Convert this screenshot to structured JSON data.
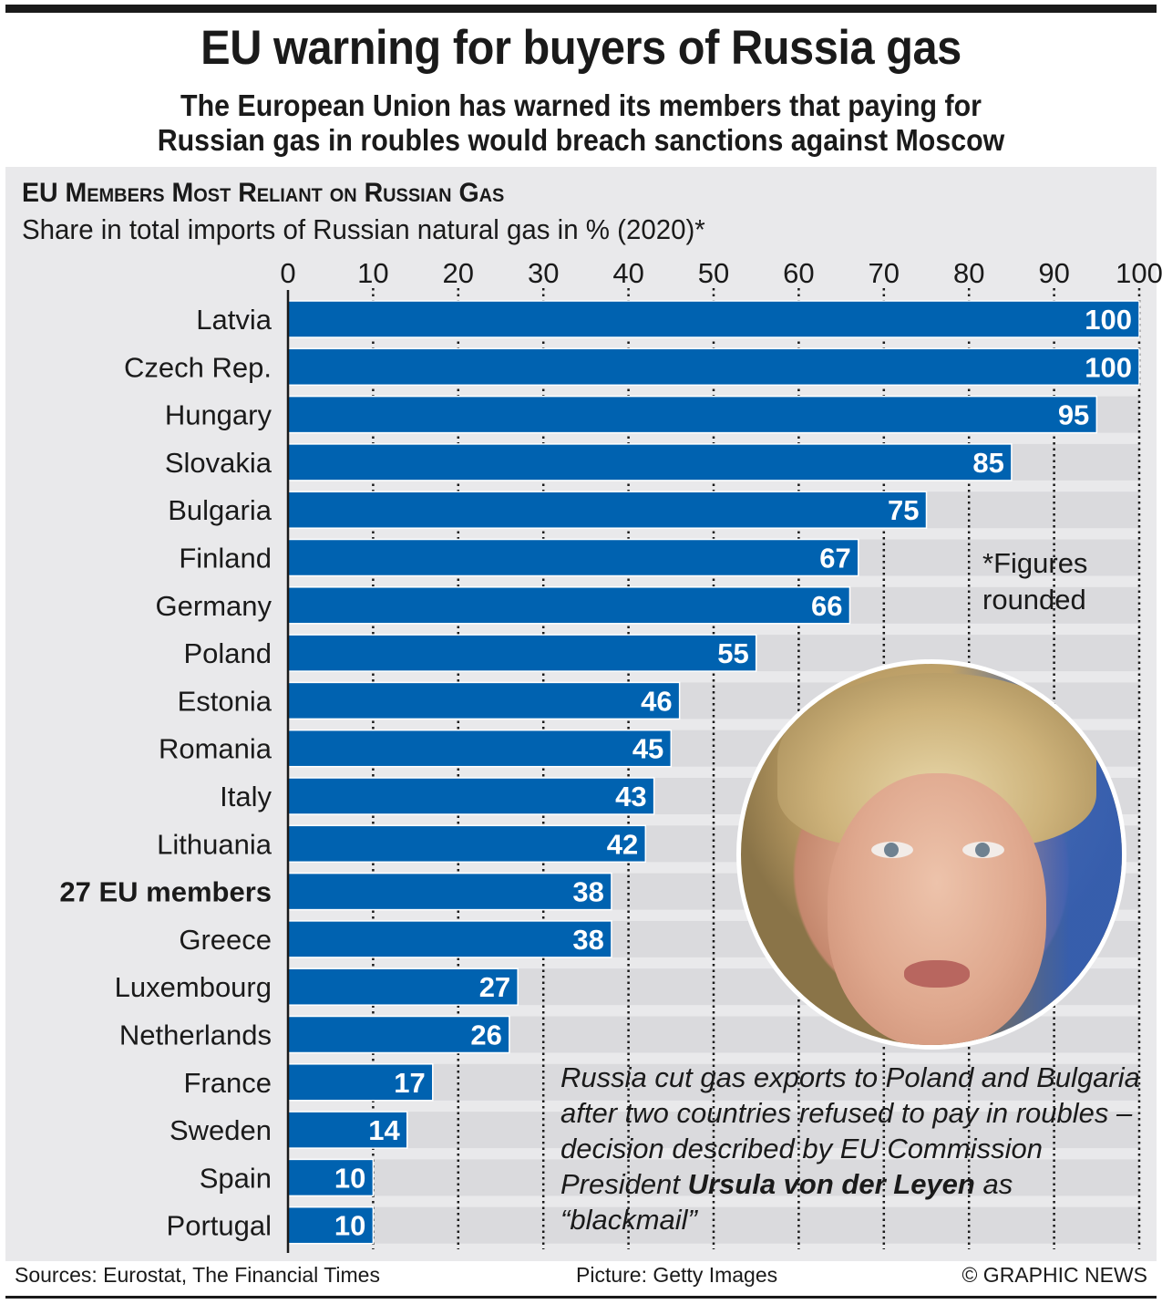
{
  "header": {
    "title": "EU warning for buyers of Russia gas",
    "subtitle_line1": "The European Union has warned its members that paying for",
    "subtitle_line2": "Russian gas in roubles would breach sanctions against Moscow"
  },
  "colors": {
    "bar": "#0062b0",
    "panel": "#e9e9eb",
    "row_band": "#dadadd",
    "text": "#1a1a1a",
    "bar_label": "#ffffff"
  },
  "chart_data": {
    "type": "bar",
    "orientation": "horizontal",
    "title": "EU Members Most Reliant on Russian Gas",
    "subtitle": "Share in total imports of Russian natural gas in % (2020)*",
    "xlabel": "",
    "ylabel": "",
    "xlim": [
      0,
      100
    ],
    "x_ticks": [
      0,
      10,
      20,
      30,
      40,
      50,
      60,
      70,
      80,
      90,
      100
    ],
    "grid": "vertical dotted",
    "categories": [
      "Latvia",
      "Czech Rep.",
      "Hungary",
      "Slovakia",
      "Bulgaria",
      "Finland",
      "Germany",
      "Poland",
      "Estonia",
      "Romania",
      "Italy",
      "Lithuania",
      "27 EU members",
      "Greece",
      "Luxembourg",
      "Netherlands",
      "France",
      "Sweden",
      "Spain",
      "Portugal"
    ],
    "values": [
      100,
      100,
      95,
      85,
      75,
      67,
      66,
      55,
      46,
      45,
      43,
      42,
      38,
      38,
      27,
      26,
      17,
      14,
      10,
      10
    ],
    "highlight_categories": [
      "27 EU members"
    ],
    "data_labels": [
      "100",
      "100",
      "95",
      "85",
      "75",
      "67",
      "66",
      "55",
      "46",
      "45",
      "43",
      "42",
      "38",
      "38",
      "27",
      "26",
      "17",
      "14",
      "10",
      "10"
    ],
    "footnote": "*Figures rounded"
  },
  "photo": {
    "description": "Portrait of Ursula von der Leyen"
  },
  "caption": {
    "text_before": "Russia cut gas exports to Poland and Bulgaria after two countries refused to pay in roubles – decision described by EU Commission President ",
    "bold_name": "Ursula von der Leyen",
    "text_after": " as “blackmail”"
  },
  "footer": {
    "sources": "Sources: Eurostat, The Financial Times",
    "picture": "Picture: Getty Images",
    "copyright": "© GRAPHIC NEWS"
  }
}
